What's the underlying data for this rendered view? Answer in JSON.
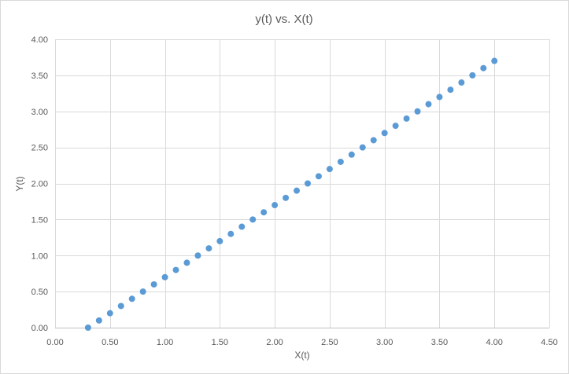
{
  "chart_data": {
    "type": "scatter",
    "title": "y(t) vs. X(t)",
    "xlabel": "X(t)",
    "ylabel": "Y(t)",
    "xlim": [
      0,
      4.5
    ],
    "ylim": [
      0,
      4
    ],
    "x_ticks": [
      0,
      0.5,
      1,
      1.5,
      2,
      2.5,
      3,
      3.5,
      4,
      4.5
    ],
    "y_ticks": [
      0,
      0.5,
      1,
      1.5,
      2,
      2.5,
      3,
      3.5,
      4
    ],
    "tick_decimals": 2,
    "grid": true,
    "legend": "none",
    "marker_color": "#5b9bd5",
    "series": [
      {
        "x": [
          0.3,
          0.4,
          0.5,
          0.6,
          0.7,
          0.8,
          0.9,
          1.0,
          1.1,
          1.2,
          1.3,
          1.4,
          1.5,
          1.6,
          1.7,
          1.8,
          1.9,
          2.0,
          2.1,
          2.2,
          2.3,
          2.4,
          2.5,
          2.6,
          2.7,
          2.8,
          2.9,
          3.0,
          3.1,
          3.2,
          3.3,
          3.4,
          3.5,
          3.6,
          3.7,
          3.8,
          3.9,
          4.0
        ],
        "y": [
          0.0,
          0.1,
          0.2,
          0.3,
          0.4,
          0.5,
          0.6,
          0.7,
          0.8,
          0.9,
          1.0,
          1.1,
          1.2,
          1.3,
          1.4,
          1.5,
          1.6,
          1.7,
          1.8,
          1.9,
          2.0,
          2.1,
          2.2,
          2.3,
          2.4,
          2.5,
          2.6,
          2.7,
          2.8,
          2.9,
          3.0,
          3.1,
          3.2,
          3.3,
          3.4,
          3.5,
          3.6,
          3.7
        ]
      }
    ]
  }
}
